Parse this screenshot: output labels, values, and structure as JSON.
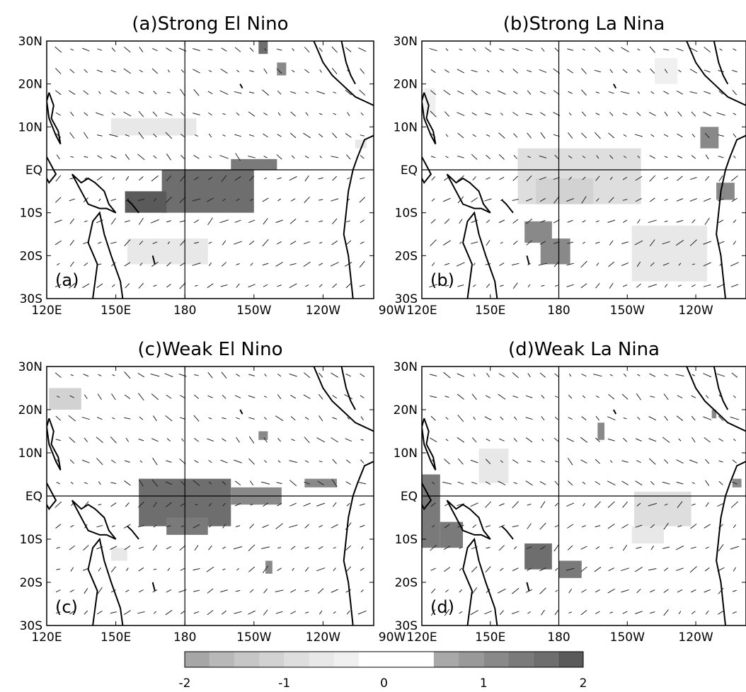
{
  "chart_data": {
    "type": "heatmap",
    "panels": [
      {
        "id": "a",
        "title": "(a)Strong El Nino",
        "label": "(a)",
        "xticks": [
          "120E",
          "150E",
          "180",
          "150W",
          "120W",
          "90W"
        ],
        "yticks": [
          "30N",
          "20N",
          "10N",
          "EQ",
          "10S",
          "20S",
          "30S"
        ],
        "shaded_regions": [
          {
            "lon": [
              170,
              210
            ],
            "lat": [
              -10,
              0
            ],
            "value": 1.7
          },
          {
            "lon": [
              154,
              172
            ],
            "lat": [
              -10,
              -5
            ],
            "value": 1.8
          },
          {
            "lon": [
              200,
              220
            ],
            "lat": [
              0,
              2.5
            ],
            "value": 1.3
          },
          {
            "lon": [
              155,
              190
            ],
            "lat": [
              -22,
              -16
            ],
            "value": -0.7
          },
          {
            "lon": [
              148,
              185
            ],
            "lat": [
              8,
              12
            ],
            "value": -0.7
          },
          {
            "lon": [
              212,
              216
            ],
            "lat": [
              27,
              30
            ],
            "value": 1.6
          },
          {
            "lon": [
              220,
              224
            ],
            "lat": [
              22,
              25
            ],
            "value": 1.2
          },
          {
            "lon": [
              254,
              259
            ],
            "lat": [
              5,
              7
            ],
            "value": -0.6
          }
        ]
      },
      {
        "id": "b",
        "title": "(b)Strong La Nina",
        "label": "(b)",
        "xticks": [
          "120E",
          "150E",
          "180",
          "150W",
          "120W",
          "90W"
        ],
        "yticks": [
          "30N",
          "20N",
          "10N",
          "EQ",
          "10S",
          "20S",
          "30S"
        ],
        "shaded_regions": [
          {
            "lon": [
              162,
              216
            ],
            "lat": [
              -8,
              5
            ],
            "value": -0.8
          },
          {
            "lon": [
              170,
              195
            ],
            "lat": [
              -8,
              -2
            ],
            "value": -1.1
          },
          {
            "lon": [
              242,
              250
            ],
            "lat": [
              5,
              10
            ],
            "value": 1.2
          },
          {
            "lon": [
              249,
              257
            ],
            "lat": [
              -7,
              -3
            ],
            "value": 1.2
          },
          {
            "lon": [
              165,
              177
            ],
            "lat": [
              -17,
              -12
            ],
            "value": 1.2
          },
          {
            "lon": [
              172,
              185
            ],
            "lat": [
              -22,
              -16
            ],
            "value": 1.2
          },
          {
            "lon": [
              212,
              245
            ],
            "lat": [
              -26,
              -13
            ],
            "value": -0.6
          },
          {
            "lon": [
              222,
              232
            ],
            "lat": [
              20,
              26
            ],
            "value": -0.5
          },
          {
            "lon": [
              121,
              126
            ],
            "lat": [
              13,
              19
            ],
            "value": -0.5
          }
        ]
      },
      {
        "id": "c",
        "title": "(c)Weak El Nino",
        "label": "(c)",
        "xticks": [
          "120E",
          "150E",
          "180",
          "150W",
          "120W",
          "90W"
        ],
        "yticks": [
          "30N",
          "20N",
          "10N",
          "EQ",
          "10S",
          "20S",
          "30S"
        ],
        "shaded_regions": [
          {
            "lon": [
              160,
              200
            ],
            "lat": [
              -7,
              4
            ],
            "value": 1.7
          },
          {
            "lon": [
              172,
              190
            ],
            "lat": [
              -9,
              -5
            ],
            "value": 1.4
          },
          {
            "lon": [
              200,
              222
            ],
            "lat": [
              -2,
              2
            ],
            "value": 1.1
          },
          {
            "lon": [
              232,
              246
            ],
            "lat": [
              2,
              4
            ],
            "value": 1.0
          },
          {
            "lon": [
              121,
              135
            ],
            "lat": [
              20,
              25
            ],
            "value": -1.1
          },
          {
            "lon": [
              212,
              216
            ],
            "lat": [
              13,
              15
            ],
            "value": 1.0
          },
          {
            "lon": [
              215,
              218
            ],
            "lat": [
              -18,
              -15
            ],
            "value": 1.0
          },
          {
            "lon": [
              148,
              155
            ],
            "lat": [
              -15,
              -12
            ],
            "value": -0.6
          }
        ]
      },
      {
        "id": "d",
        "title": "(d)Weak La Nina",
        "label": "(d)",
        "xticks": [
          "120E",
          "150E",
          "180",
          "150W",
          "120W",
          "90W"
        ],
        "yticks": [
          "30N",
          "20N",
          "10N",
          "EQ",
          "10S",
          "20S",
          "30S"
        ],
        "shaded_regions": [
          {
            "lon": [
              120,
              128
            ],
            "lat": [
              -12,
              5
            ],
            "value": 1.4
          },
          {
            "lon": [
              128,
              138
            ],
            "lat": [
              -12,
              -6
            ],
            "value": 1.3
          },
          {
            "lon": [
              165,
              177
            ],
            "lat": [
              -17,
              -11
            ],
            "value": 1.5
          },
          {
            "lon": [
              180,
              190
            ],
            "lat": [
              -19,
              -15
            ],
            "value": 1.4
          },
          {
            "lon": [
              213,
              238
            ],
            "lat": [
              -7,
              1
            ],
            "value": -0.8
          },
          {
            "lon": [
              212,
              226
            ],
            "lat": [
              -11,
              -7
            ],
            "value": -0.6
          },
          {
            "lon": [
              145,
              158
            ],
            "lat": [
              3,
              11
            ],
            "value": -0.6
          },
          {
            "lon": [
              197,
              200
            ],
            "lat": [
              13,
              17
            ],
            "value": 1.0
          },
          {
            "lon": [
              256,
              260
            ],
            "lat": [
              2,
              4
            ],
            "value": 1.0
          },
          {
            "lon": [
              247,
              249
            ],
            "lat": [
              18,
              20
            ],
            "value": 1.0
          }
        ]
      }
    ],
    "colorbar": {
      "levels": [
        -2.0,
        -1.75,
        -1.5,
        -1.25,
        -1.0,
        -0.75,
        -0.5,
        -0.25,
        0.25,
        0.5,
        0.75,
        1.0,
        1.25,
        1.5,
        1.75,
        2.0
      ],
      "colors": [
        "#a6a6a6",
        "#b8b8b8",
        "#c6c6c6",
        "#d2d2d2",
        "#dedede",
        "#e8e8e8",
        "#f0f0f0",
        "#ffffff",
        "#ffffff",
        "#a9a9a9",
        "#999999",
        "#898989",
        "#7a7a7a",
        "#6e6e6e",
        "#5a5a5a"
      ],
      "ticks": [
        "-2",
        "-1",
        "0",
        "1",
        "2"
      ],
      "tick_values": [
        -2,
        -1,
        0,
        1,
        2
      ]
    },
    "wind_vectors": "present",
    "lon_range": [
      120,
      262
    ],
    "lat_range": [
      -30,
      30
    ]
  }
}
